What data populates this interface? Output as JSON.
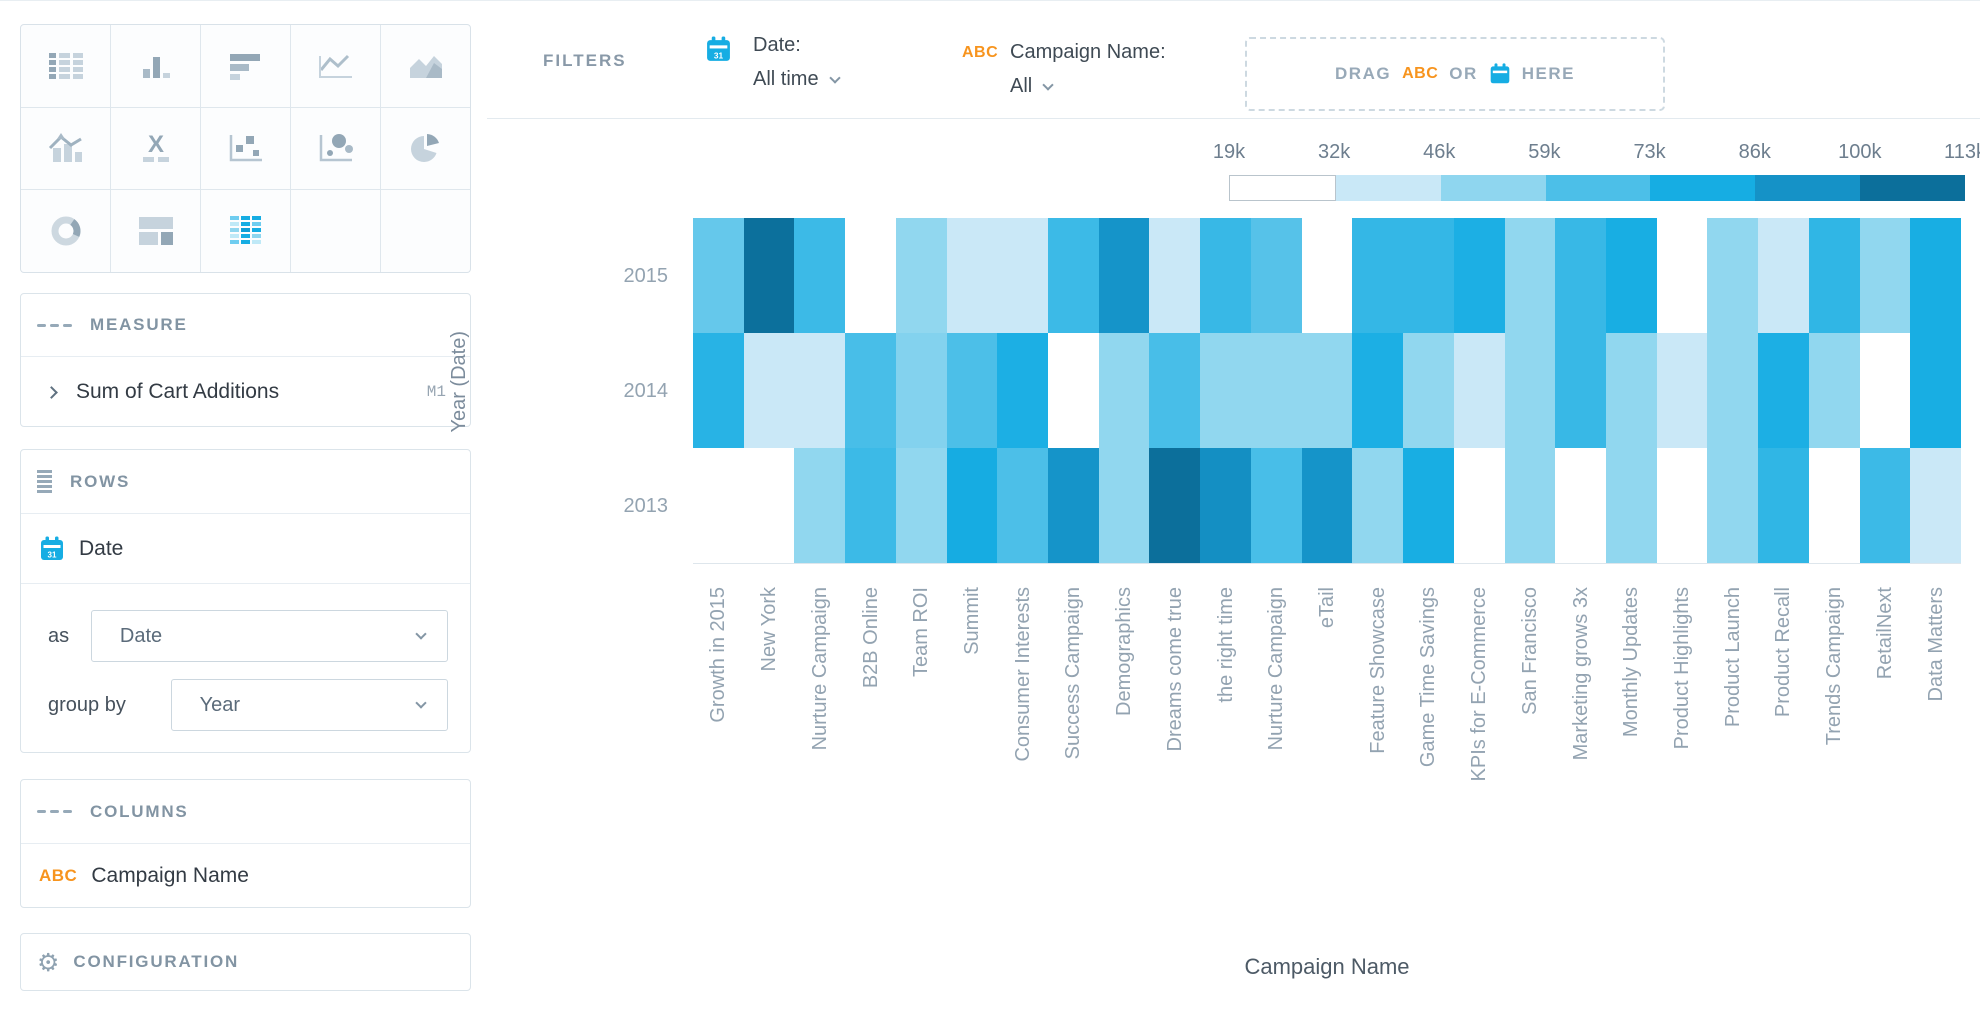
{
  "visualization_picker": {
    "types": [
      "table",
      "column-chart",
      "bar-chart",
      "line-chart",
      "area-chart",
      "combo-chart",
      "headline",
      "scatter-plot",
      "bubble-chart",
      "pie-chart",
      "donut-chart",
      "treemap",
      "heatmap"
    ],
    "selected": "heatmap"
  },
  "measure_panel": {
    "title": "MEASURE",
    "item_label": "Sum of Cart Additions",
    "item_badge": "M1"
  },
  "rows_panel": {
    "title": "ROWS",
    "item_label": "Date",
    "as_label": "as",
    "as_value": "Date",
    "group_by_label": "group by",
    "group_by_value": "Year"
  },
  "columns_panel": {
    "title": "COLUMNS",
    "item_label": "Campaign Name"
  },
  "configuration_panel": {
    "title": "CONFIGURATION"
  },
  "filters_bar": {
    "title": "FILTERS",
    "date_label": "Date:",
    "date_value": "All time",
    "campaign_label": "Campaign Name:",
    "campaign_value": "All",
    "dropzone": {
      "drag": "DRAG",
      "abc": "ABC",
      "or": "OR",
      "here": "HERE"
    }
  },
  "chart_data": {
    "type": "heatmap",
    "measure": "Sum of Cart Additions",
    "xlabel": "Campaign Name",
    "ylabel": "Year (Date)",
    "rows": [
      "2015",
      "2014",
      "2013"
    ],
    "categories": [
      "Growth in 2015",
      "New York",
      "Nurture Campaign",
      "B2B Online",
      "Team ROI",
      "Summit",
      "Consumer Interests",
      "Success Campaign",
      "Demographics",
      "Dreams come true",
      "the right time",
      "Nurture Campaign",
      "eTail",
      "Feature Showcase",
      "Game Time Savings",
      "KPIs for E-Commerce",
      "San Francisco",
      "Marketing grows 3x",
      "Monthly Updates",
      "Product Highlights",
      "Product Launch",
      "Product Recall",
      "Trends Campaign",
      "RetailNext",
      "Data Matters"
    ],
    "series": [
      {
        "name": "2015",
        "values_k": [
          61,
          106,
          70,
          25,
          52,
          39,
          39,
          70,
          92,
          39,
          71,
          64,
          25,
          72,
          72,
          78,
          52,
          71,
          79,
          25,
          52,
          39,
          73,
          52,
          79
        ]
      },
      {
        "name": "2014",
        "values_k": [
          75,
          39,
          39,
          67,
          55,
          66,
          78,
          25,
          52,
          67,
          52,
          52,
          52,
          78,
          52,
          39,
          52,
          71,
          52,
          39,
          52,
          78,
          52,
          25,
          79
        ]
      },
      {
        "name": "2013",
        "values_k": [
          25,
          25,
          52,
          70,
          52,
          80,
          66,
          92,
          52,
          107,
          94,
          67,
          92,
          52,
          79,
          25,
          52,
          25,
          52,
          25,
          52,
          73,
          25,
          70,
          39
        ]
      }
    ],
    "value_unit": "k",
    "legend": {
      "position": "top-right",
      "tick_labels": [
        "19k",
        "32k",
        "46k",
        "59k",
        "73k",
        "86k",
        "100k",
        "113k"
      ],
      "range_k": [
        19,
        113
      ],
      "palette": [
        "#ffffff",
        "#c9e8f7",
        "#8fd6ef",
        "#4cbfe8",
        "#16ade3",
        "#1592c7",
        "#0c6f9b"
      ]
    },
    "grid": false
  },
  "colors": {
    "accent_blue": "#16ade3",
    "accent_orange": "#f7941e",
    "panel_border": "#dbe4ea",
    "header_text": "#8294a3",
    "item_text": "#333b44",
    "axis_text": "#93a3b1"
  }
}
